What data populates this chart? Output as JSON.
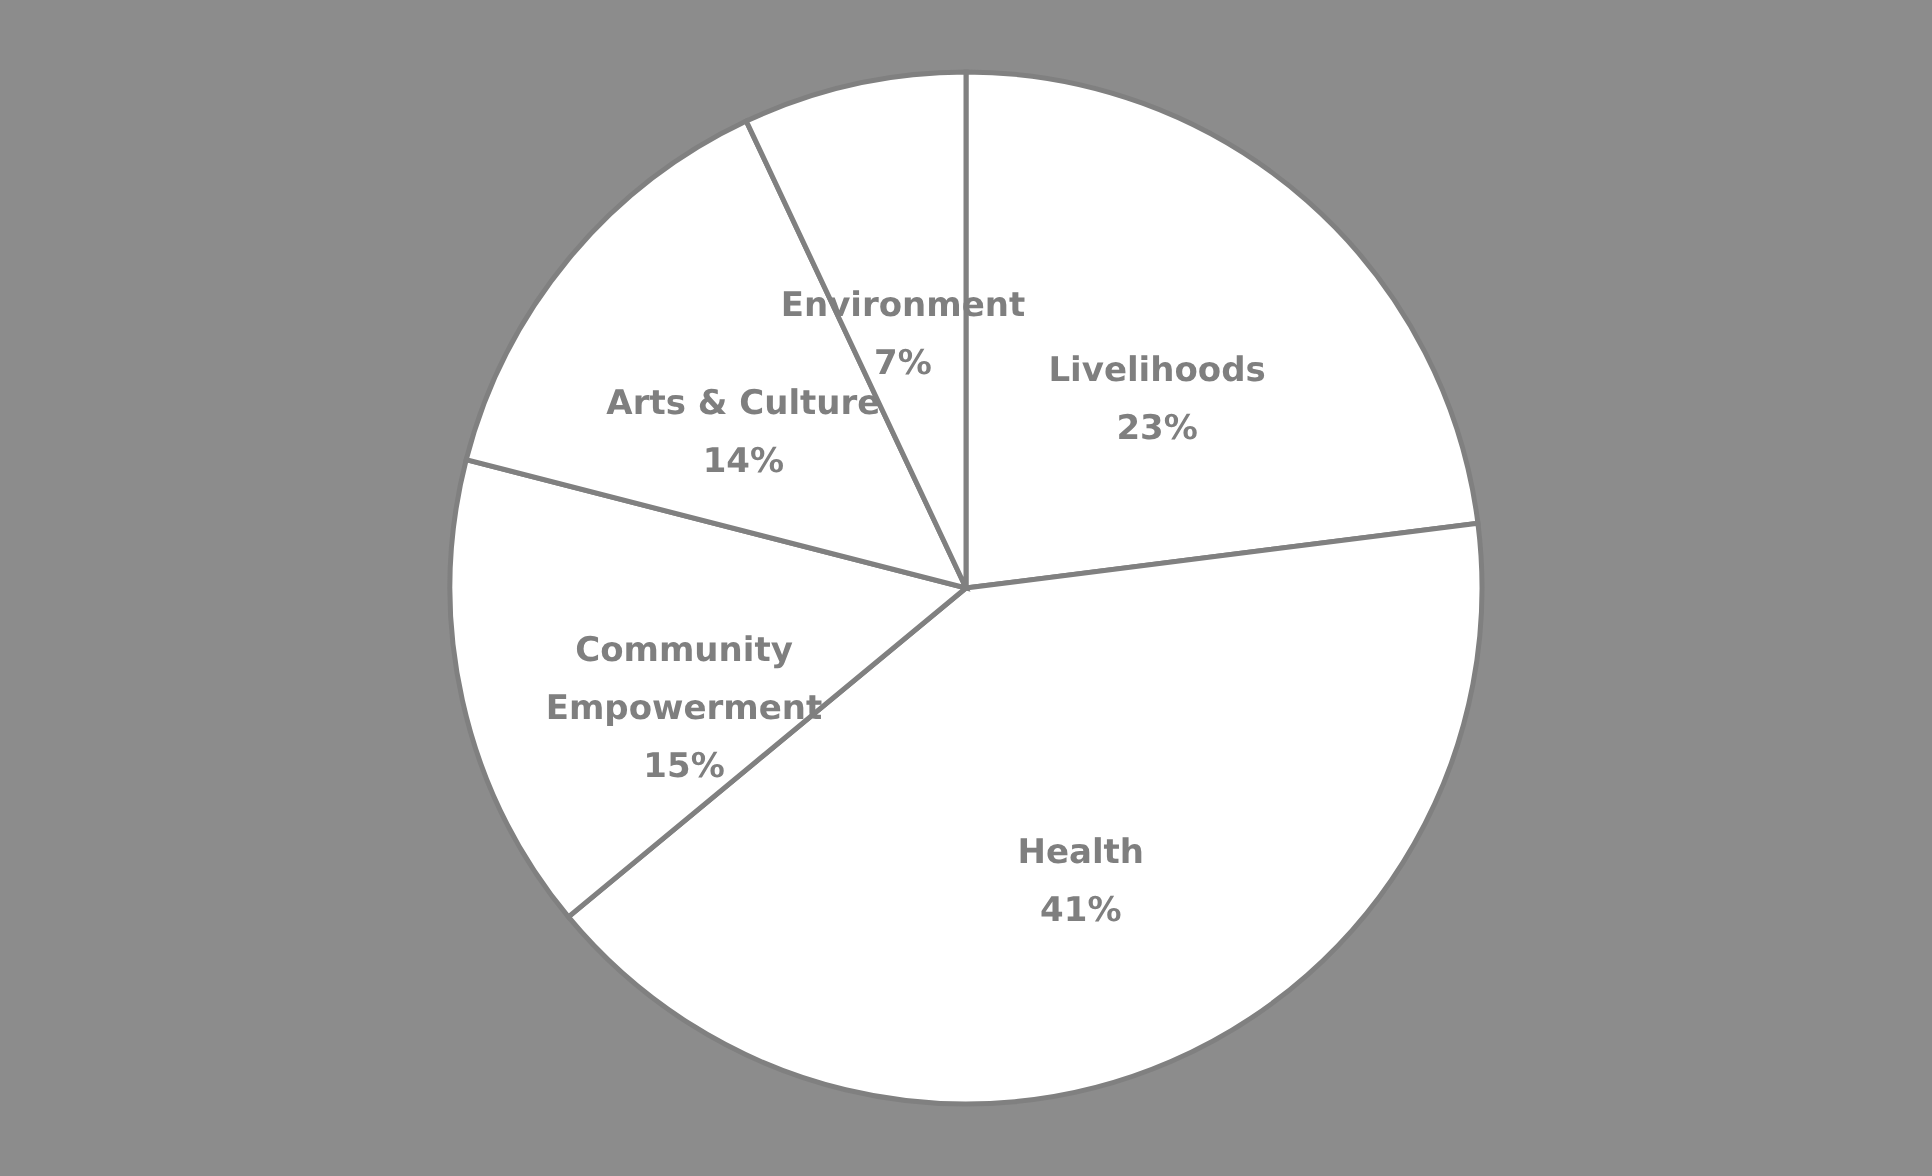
{
  "chart_data": {
    "type": "pie",
    "categories": [
      "Livelihoods",
      "Health",
      "Community Empowerment",
      "Arts & Culture",
      "Environment"
    ],
    "values": [
      23,
      41,
      15,
      14,
      7
    ],
    "value_labels": [
      "23%",
      "41%",
      "15%",
      "14%",
      "7%"
    ],
    "colors": [
      "#ffffff",
      "#ffffff",
      "#ffffff",
      "#ffffff",
      "#ffffff"
    ]
  }
}
